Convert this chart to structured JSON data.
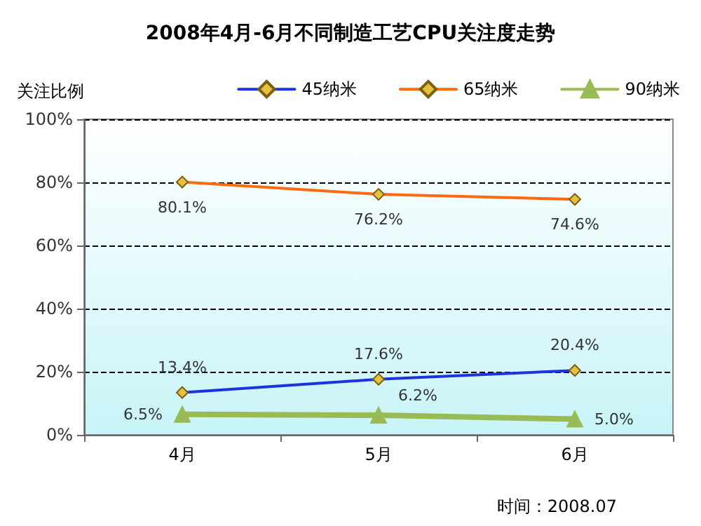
{
  "chart_data": {
    "type": "line",
    "title": "2008年4月-6月不同制造工艺CPU关注度走势",
    "ylabel": "关注比例",
    "categories": [
      "4月",
      "5月",
      "6月"
    ],
    "series": [
      {
        "name": "45纳米",
        "color": "#1c33e0",
        "marker": "diamond",
        "values": [
          13.4,
          17.6,
          20.4
        ],
        "value_labels": [
          "13.4%",
          "17.6%",
          "20.4%"
        ]
      },
      {
        "name": "65纳米",
        "color": "#ff6a10",
        "marker": "diamond",
        "values": [
          80.1,
          76.2,
          74.6
        ],
        "value_labels": [
          "80.1%",
          "76.2%",
          "74.6%"
        ]
      },
      {
        "name": "90纳米",
        "color": "#99bb55",
        "marker": "triangle",
        "values": [
          6.5,
          6.2,
          5.0
        ],
        "value_labels": [
          "6.5%",
          "6.2%",
          "5.0%"
        ]
      }
    ],
    "ylim": [
      0,
      100
    ],
    "yticks": [
      {
        "value": 0,
        "label": "0%"
      },
      {
        "value": 20,
        "label": "20%"
      },
      {
        "value": 40,
        "label": "40%"
      },
      {
        "value": 60,
        "label": "60%"
      },
      {
        "value": 80,
        "label": "80%"
      },
      {
        "value": 100,
        "label": "100%"
      }
    ],
    "grid": "y",
    "legend": "top right",
    "line_style": "solid",
    "annotations": [
      "时间：2008.07"
    ]
  }
}
